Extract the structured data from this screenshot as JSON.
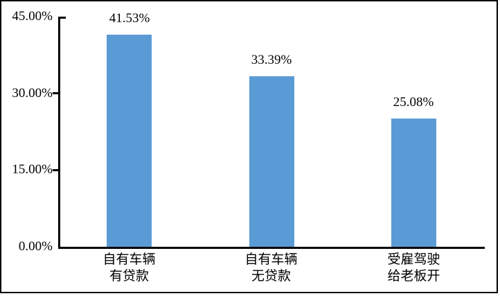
{
  "chart_data": {
    "type": "bar",
    "title": "",
    "categories": [
      [
        "自有车辆",
        "有贷款"
      ],
      [
        "自有车辆",
        "无贷款"
      ],
      [
        "受雇驾驶",
        "给老板开"
      ]
    ],
    "values": [
      41.53,
      33.39,
      25.08
    ],
    "value_labels": [
      "41.53%",
      "33.39%",
      "25.08%"
    ],
    "y_ticks": [
      {
        "value": 45,
        "label": "45.00%"
      },
      {
        "value": 30,
        "label": "30.00%"
      },
      {
        "value": 15,
        "label": "15.00%"
      },
      {
        "value": 0,
        "label": "0.00%"
      }
    ],
    "ylim": [
      0,
      45
    ],
    "grid": false,
    "legend_position": "none",
    "bar_color": "#5B9BD5",
    "axis_color": "#000000",
    "text_color": "#000000",
    "background_color": "#FFFFFF"
  }
}
